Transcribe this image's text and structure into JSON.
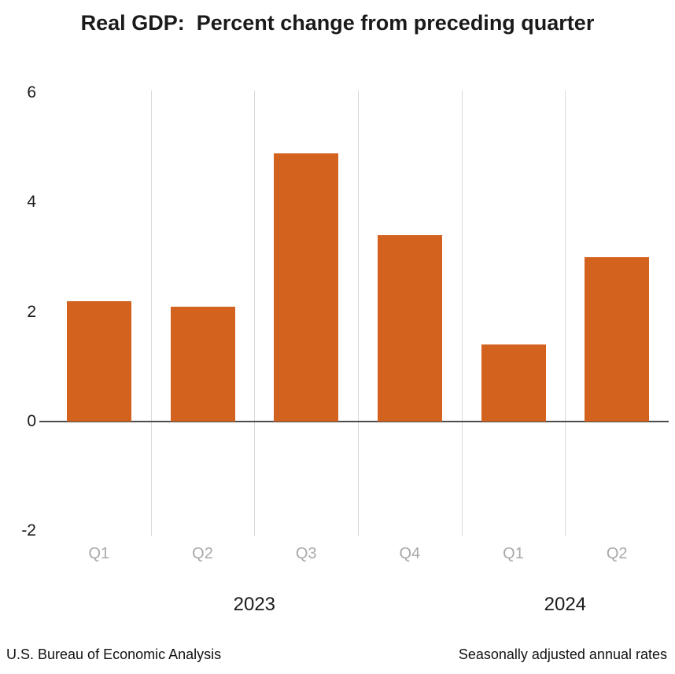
{
  "chart_data": {
    "type": "bar",
    "title": "Real GDP:  Percent change from preceding quarter",
    "categories": [
      "Q1",
      "Q2",
      "Q3",
      "Q4",
      "Q1",
      "Q2"
    ],
    "values": [
      2.2,
      2.1,
      4.9,
      3.4,
      1.4,
      3.0
    ],
    "year_groups": [
      {
        "label": "2023",
        "start": 0,
        "end": 3
      },
      {
        "label": "2024",
        "start": 4,
        "end": 5
      }
    ],
    "ylim": [
      -2,
      6
    ],
    "yticks": [
      6,
      4,
      2,
      0,
      -2
    ],
    "bar_color": "#D2621E",
    "gridline_color": "#D9D9D9",
    "zero_line_color": "#4D4D4D",
    "category_label_color": "#A9A9A9",
    "grid": "vertical category separators only",
    "legend": "none",
    "xlabel": "",
    "ylabel": "",
    "source_note_left": "U.S. Bureau of Economic Analysis",
    "source_note_right": "Seasonally adjusted annual rates"
  }
}
